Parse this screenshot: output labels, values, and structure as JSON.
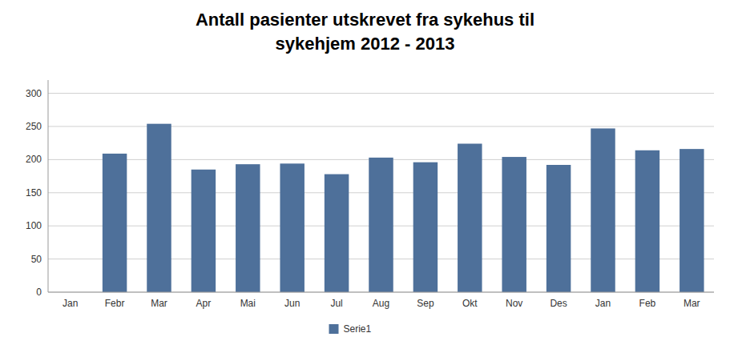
{
  "chart_data": {
    "type": "bar",
    "title": "Antall pasienter utskrevet fra sykehus til\nsykehjem 2012 - 2013",
    "categories": [
      "Jan",
      "Febr",
      "Mar",
      "Apr",
      "Mai",
      "Jun",
      "Jul",
      "Aug",
      "Sep",
      "Okt",
      "Nov",
      "Des",
      "Jan",
      "Feb",
      "Mar"
    ],
    "series": [
      {
        "name": "Serie1",
        "color": "#4E709A",
        "values": [
          0,
          209,
          254,
          185,
          193,
          194,
          178,
          203,
          196,
          224,
          204,
          192,
          247,
          214,
          216
        ]
      }
    ],
    "ylim": [
      0,
      320
    ],
    "yticks": [
      0,
      50,
      100,
      150,
      200,
      250,
      300
    ],
    "grid": true,
    "legend": "bottom"
  }
}
